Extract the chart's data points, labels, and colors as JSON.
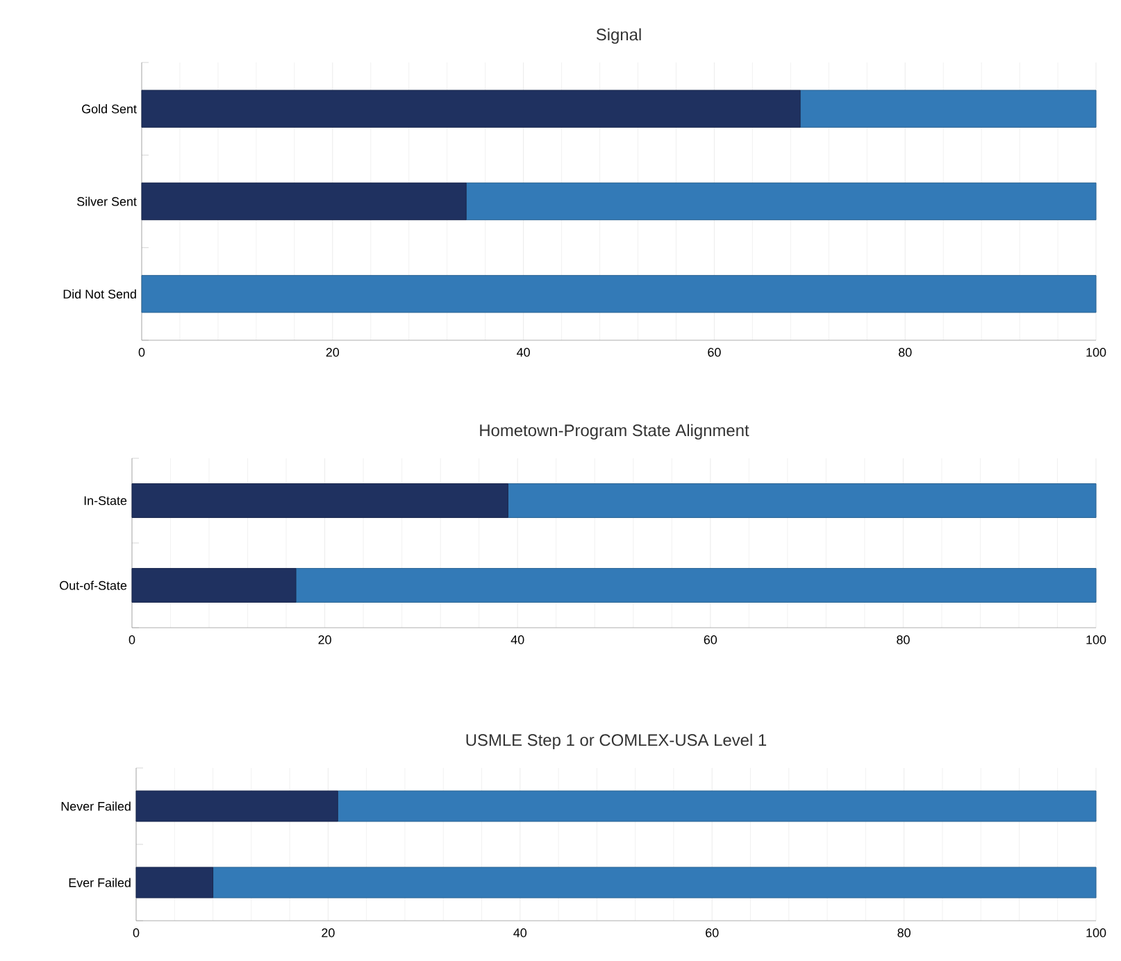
{
  "chart_data": [
    {
      "type": "bar",
      "orientation": "horizontal",
      "stacked": true,
      "title": "Signal",
      "categories": [
        "Gold Sent",
        "Silver Sent",
        "Did Not Send"
      ],
      "series": [
        {
          "color": "#1f3160",
          "values": [
            69,
            34,
            0
          ]
        },
        {
          "color": "#337ab7",
          "values": [
            31,
            66,
            100
          ]
        }
      ],
      "xlim": [
        0,
        100
      ],
      "xticks": [
        0,
        20,
        40,
        60,
        80,
        100
      ],
      "grid": "x"
    },
    {
      "type": "bar",
      "orientation": "horizontal",
      "stacked": true,
      "title": "Hometown-Program State Alignment",
      "categories": [
        "In-State",
        "Out-of-State"
      ],
      "series": [
        {
          "color": "#1f3160",
          "values": [
            39,
            17
          ]
        },
        {
          "color": "#337ab7",
          "values": [
            61,
            83
          ]
        }
      ],
      "xlim": [
        0,
        100
      ],
      "xticks": [
        0,
        20,
        40,
        60,
        80,
        100
      ],
      "grid": "x"
    },
    {
      "type": "bar",
      "orientation": "horizontal",
      "stacked": true,
      "title": "USMLE Step 1 or COMLEX-USA Level 1",
      "categories": [
        "Never Failed",
        "Ever Failed"
      ],
      "series": [
        {
          "color": "#1f3160",
          "values": [
            21,
            8
          ]
        },
        {
          "color": "#337ab7",
          "values": [
            79,
            92
          ]
        }
      ],
      "xlim": [
        0,
        100
      ],
      "xticks": [
        0,
        20,
        40,
        60,
        80,
        100
      ],
      "grid": "x"
    }
  ]
}
